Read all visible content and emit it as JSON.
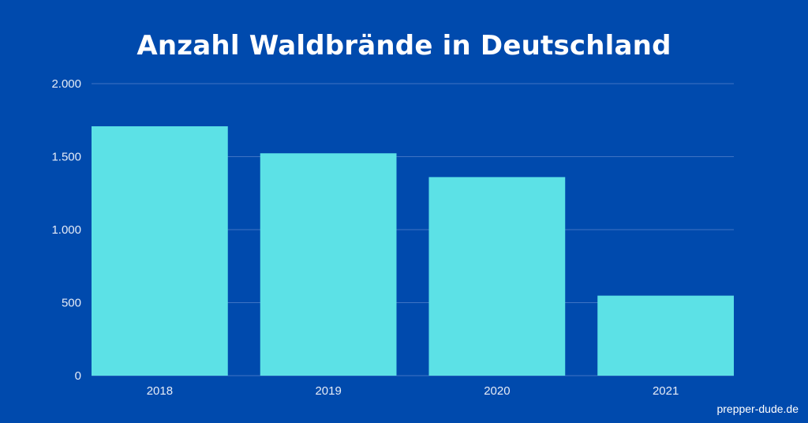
{
  "chart_data": {
    "type": "bar",
    "title": "Anzahl Waldbrände in Deutschland",
    "categories": [
      "2018",
      "2019",
      "2020",
      "2021"
    ],
    "values": [
      1708,
      1523,
      1360,
      548
    ],
    "ylim": [
      0,
      2000
    ],
    "yticks": [
      0,
      500,
      1000,
      1500,
      2000
    ],
    "ytick_labels": [
      "0",
      "500",
      "1.000",
      "1.500",
      "2.000"
    ],
    "xlabel": "",
    "ylabel": "",
    "grid": true,
    "legend": "none",
    "colors": {
      "background": "#004aad",
      "bar": "#5ce1e6",
      "grid": "#3f73c4",
      "text": "#e6ecf7"
    }
  },
  "footer": {
    "credit": "prepper-dude.de"
  }
}
